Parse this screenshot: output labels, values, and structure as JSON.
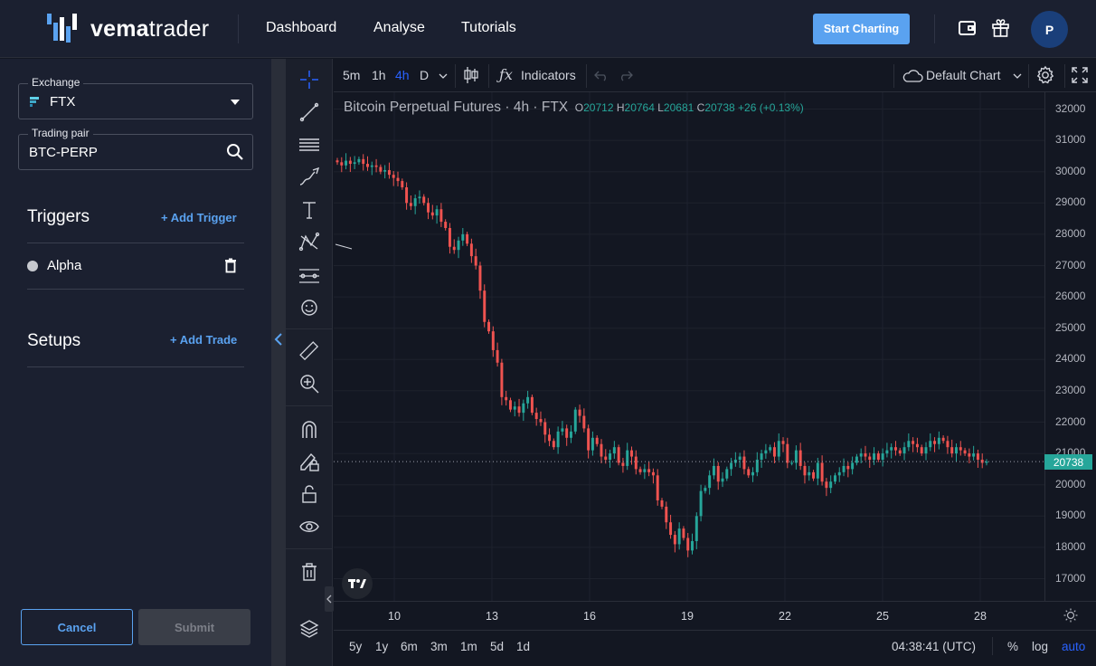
{
  "header": {
    "logo_bold": "vema",
    "logo_light": "trader",
    "nav": [
      "Dashboard",
      "Analyse",
      "Tutorials"
    ],
    "start_label": "Start Charting",
    "avatar_initial": "P"
  },
  "sidebar": {
    "exchange_label": "Exchange",
    "exchange_value": "FTX",
    "pair_label": "Trading pair",
    "pair_value": "BTC-PERP",
    "triggers_title": "Triggers",
    "add_trigger": "+ Add Trigger",
    "trigger_items": [
      "Alpha"
    ],
    "setups_title": "Setups",
    "add_trade": "+ Add Trade",
    "cancel": "Cancel",
    "submit": "Submit"
  },
  "chart_toolbar": {
    "timeframes": [
      "5m",
      "1h",
      "4h",
      "D"
    ],
    "active_timeframe": "4h",
    "indicators_label": "Indicators",
    "layout_label": "Default Chart"
  },
  "chart_data": {
    "type": "candlestick",
    "symbol": "Bitcoin Perpetual Futures",
    "interval": "4h",
    "exchange": "FTX",
    "ohlc": {
      "o": "20712",
      "h": "20764",
      "l": "20681",
      "c": "20738",
      "change": "+26 (+0.13%)"
    },
    "last_price": "20738",
    "y_ticks": [
      "32000",
      "31000",
      "30000",
      "29000",
      "28000",
      "27000",
      "26000",
      "25000",
      "24000",
      "23000",
      "22000",
      "21000",
      "20000",
      "19000",
      "18000",
      "17000"
    ],
    "ylim": [
      16700,
      32200
    ],
    "x_ticks": [
      "10",
      "13",
      "16",
      "19",
      "22",
      "25",
      "28"
    ],
    "grid": true,
    "close_series": [
      30300,
      30200,
      30350,
      30250,
      30300,
      30400,
      30250,
      30150,
      30200,
      30150,
      30000,
      30050,
      29900,
      29800,
      29700,
      29500,
      29000,
      28900,
      29150,
      29200,
      29000,
      28700,
      28600,
      28800,
      28400,
      28200,
      27600,
      27500,
      27800,
      28000,
      27700,
      27300,
      27000,
      26200,
      25200,
      24900,
      24300,
      23900,
      22800,
      22700,
      22400,
      22500,
      22300,
      22600,
      22800,
      22300,
      22100,
      22000,
      21600,
      21400,
      21200,
      21700,
      21800,
      21500,
      21700,
      22400,
      22200,
      21800,
      21100,
      21500,
      21300,
      20900,
      20800,
      21000,
      21200,
      20700,
      20600,
      21100,
      20900,
      20500,
      20400,
      20500,
      20400,
      20300,
      19500,
      19300,
      18800,
      18400,
      18100,
      18600,
      18300,
      17900,
      18200,
      19000,
      19800,
      19900,
      20300,
      20600,
      20100,
      20200,
      20500,
      20700,
      20800,
      20900,
      20500,
      20300,
      20400,
      20800,
      21000,
      21100,
      21200,
      20900,
      21400,
      21300,
      20700,
      20700,
      21100,
      20600,
      20300,
      20400,
      20200,
      20700,
      20100,
      19900,
      20100,
      20300,
      20400,
      20600,
      20500,
      20700,
      20900,
      21000,
      20900,
      20800,
      21000,
      20800,
      21000,
      21100,
      21200,
      21100,
      21000,
      21200,
      21400,
      21300,
      21200,
      21000,
      21200,
      21400,
      21300,
      21500,
      21400,
      21200,
      21000,
      21200,
      21100,
      21000,
      20900,
      21000,
      20800,
      20700,
      20738
    ],
    "range_buttons": [
      "5y",
      "1y",
      "6m",
      "3m",
      "1m",
      "5d",
      "1d"
    ],
    "clock": "04:38:41 (UTC)",
    "scale_options": [
      "%",
      "log",
      "auto"
    ]
  },
  "colors": {
    "up": "#26a69a",
    "down": "#ef5350",
    "accent": "#5aa2f0"
  }
}
